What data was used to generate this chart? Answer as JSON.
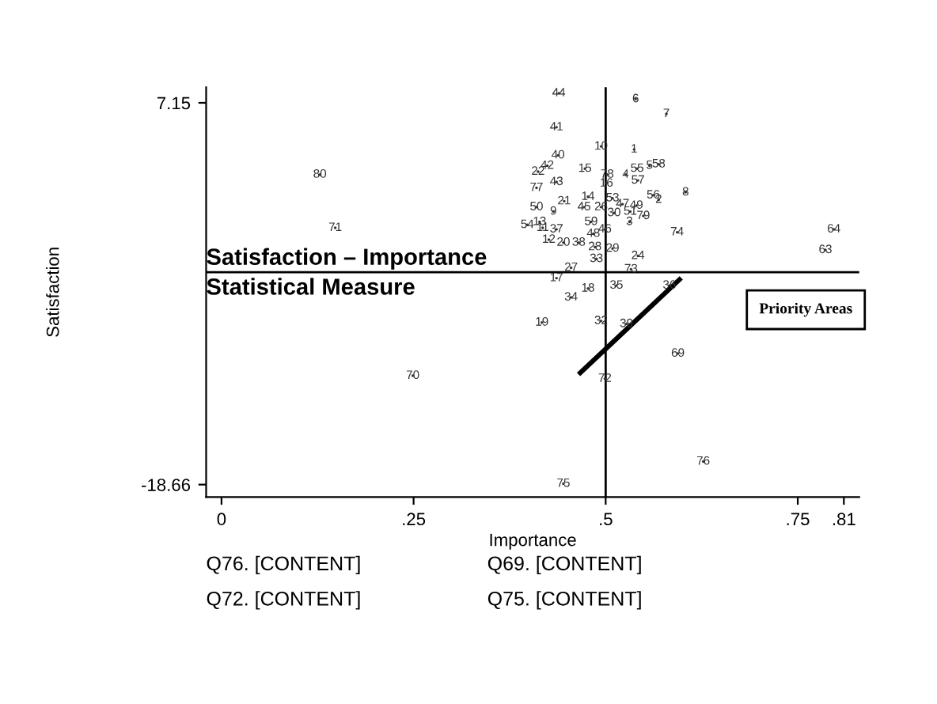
{
  "chart_data": {
    "type": "scatter",
    "title": "Satisfaction – Importance Statistical Measure",
    "xlabel": "Importance",
    "ylabel": "Satisfaction",
    "annotations": [
      "Priority Areas",
      "Q76. [CONTENT]",
      "Q69. [CONTENT]",
      "Q72. [CONTENT]",
      "Q75. [CONTENT]",
      {
        "text": "44",
        "x": 0.439,
        "y": 7.8
      },
      {
        "text": "41",
        "x": 0.436,
        "y": 5.5
      },
      {
        "text": "40",
        "x": 0.438,
        "y": 3.6
      },
      {
        "text": "10",
        "x": 0.494,
        "y": 4.2
      },
      {
        "text": "42",
        "x": 0.424,
        "y": 2.9
      },
      {
        "text": "22",
        "x": 0.412,
        "y": 2.5
      },
      {
        "text": "80",
        "x": 0.128,
        "y": 2.3
      },
      {
        "text": "15",
        "x": 0.473,
        "y": 2.7
      },
      {
        "text": "78",
        "x": 0.502,
        "y": 2.3
      },
      {
        "text": "16",
        "x": 0.501,
        "y": 1.7
      },
      {
        "text": "77",
        "x": 0.41,
        "y": 1.4
      },
      {
        "text": "43",
        "x": 0.436,
        "y": 1.8
      },
      {
        "text": "14",
        "x": 0.477,
        "y": 0.8
      },
      {
        "text": "53",
        "x": 0.509,
        "y": 0.7
      },
      {
        "text": "50",
        "x": 0.41,
        "y": 0.1
      },
      {
        "text": "9",
        "x": 0.432,
        "y": -0.2
      },
      {
        "text": "21",
        "x": 0.446,
        "y": 0.5
      },
      {
        "text": "45",
        "x": 0.472,
        "y": 0.1
      },
      {
        "text": "26",
        "x": 0.494,
        "y": 0.1
      },
      {
        "text": "28",
        "x": 0.486,
        "y": -2.6
      },
      {
        "text": "30",
        "x": 0.511,
        "y": -0.3
      },
      {
        "text": "47",
        "x": 0.522,
        "y": 0.3
      },
      {
        "text": "49",
        "x": 0.54,
        "y": 0.2
      },
      {
        "text": "51",
        "x": 0.532,
        "y": -0.2
      },
      {
        "text": "79",
        "x": 0.549,
        "y": -0.5
      },
      {
        "text": "3",
        "x": 0.531,
        "y": -0.9
      },
      {
        "text": "5",
        "x": 0.557,
        "y": 2.9
      },
      {
        "text": "58",
        "x": 0.569,
        "y": 3.0
      },
      {
        "text": "55",
        "x": 0.541,
        "y": 2.7
      },
      {
        "text": "57",
        "x": 0.542,
        "y": 1.9
      },
      {
        "text": "4",
        "x": 0.526,
        "y": 2.3
      },
      {
        "text": "1",
        "x": 0.537,
        "y": 4.0
      },
      {
        "text": "6",
        "x": 0.539,
        "y": 7.4
      },
      {
        "text": "7",
        "x": 0.579,
        "y": 6.4
      },
      {
        "text": "8",
        "x": 0.604,
        "y": 1.1
      },
      {
        "text": "56",
        "x": 0.562,
        "y": 0.9
      },
      {
        "text": "2",
        "x": 0.569,
        "y": 0.6
      },
      {
        "text": "74",
        "x": 0.593,
        "y": -1.6
      },
      {
        "text": "64",
        "x": 0.797,
        "y": -1.4
      },
      {
        "text": "63",
        "x": 0.786,
        "y": -2.8
      },
      {
        "text": "24",
        "x": 0.542,
        "y": -3.2
      },
      {
        "text": "73",
        "x": 0.533,
        "y": -4.1
      },
      {
        "text": "29",
        "x": 0.509,
        "y": -2.7
      },
      {
        "text": "33",
        "x": 0.488,
        "y": -3.4
      },
      {
        "text": "38",
        "x": 0.465,
        "y": -2.3
      },
      {
        "text": "20",
        "x": 0.445,
        "y": -2.3
      },
      {
        "text": "12",
        "x": 0.426,
        "y": -2.1
      },
      {
        "text": "37",
        "x": 0.436,
        "y": -1.4
      },
      {
        "text": "11",
        "x": 0.418,
        "y": -1.3
      },
      {
        "text": "54",
        "x": 0.398,
        "y": -1.1
      },
      {
        "text": "13",
        "x": 0.414,
        "y": -0.9
      },
      {
        "text": "59",
        "x": 0.481,
        "y": -0.9
      },
      {
        "text": "48",
        "x": 0.484,
        "y": -1.7
      },
      {
        "text": "46",
        "x": 0.499,
        "y": -1.4
      },
      {
        "text": "27",
        "x": 0.455,
        "y": -4.0
      },
      {
        "text": "17",
        "x": 0.436,
        "y": -4.7
      },
      {
        "text": "35",
        "x": 0.514,
        "y": -5.2
      },
      {
        "text": "18",
        "x": 0.477,
        "y": -5.4
      },
      {
        "text": "34",
        "x": 0.455,
        "y": -6.0
      },
      {
        "text": "36",
        "x": 0.583,
        "y": -5.2
      },
      {
        "text": "19",
        "x": 0.417,
        "y": -7.7
      },
      {
        "text": "32",
        "x": 0.494,
        "y": -7.6
      },
      {
        "text": "39",
        "x": 0.527,
        "y": -7.8
      },
      {
        "text": "69",
        "x": 0.594,
        "y": -9.8
      },
      {
        "text": "72",
        "x": 0.499,
        "y": -11.5
      },
      {
        "text": "70",
        "x": 0.249,
        "y": -11.3
      },
      {
        "text": "71",
        "x": 0.148,
        "y": -1.3
      },
      {
        "text": "76",
        "x": 0.627,
        "y": -17.1
      },
      {
        "text": "75",
        "x": 0.445,
        "y": -18.6
      }
    ],
    "xlim": [
      -0.02,
      0.83
    ],
    "ylim": [
      -19.5,
      8.2
    ],
    "xticks": [
      0,
      {
        "value": 0.25,
        "label": ".25"
      },
      {
        "value": 0.5,
        "label": ".5"
      },
      {
        "value": 0.75,
        "label": ".75"
      },
      {
        "value": 0.81,
        "label": ".81"
      }
    ],
    "yticks": [
      -18.66,
      7.15
    ],
    "grid": false,
    "legend": false,
    "ref_lines": [
      {
        "axis": "y",
        "value": -4.3,
        "color": "#000000"
      },
      {
        "axis": "x",
        "value": 0.5,
        "color": "#000000"
      }
    ],
    "marker": "circle",
    "series": [
      {
        "type": "scatter",
        "color": "#333333",
        "x": [
          0.439,
          0.436,
          0.438,
          0.494,
          0.424,
          0.412,
          0.128,
          0.473,
          0.502,
          0.501,
          0.41,
          0.436,
          0.477,
          0.509,
          0.41,
          0.432,
          0.446,
          0.472,
          0.494,
          0.486,
          0.511,
          0.522,
          0.54,
          0.532,
          0.549,
          0.531,
          0.557,
          0.569,
          0.541,
          0.542,
          0.526,
          0.537,
          0.539,
          0.579,
          0.604,
          0.562,
          0.569,
          0.593,
          0.797,
          0.786,
          0.542,
          0.533,
          0.509,
          0.488,
          0.465,
          0.445,
          0.426,
          0.436,
          0.418,
          0.398,
          0.414,
          0.481,
          0.484,
          0.499,
          0.455,
          0.436,
          0.514,
          0.477,
          0.455,
          0.583,
          0.417,
          0.494,
          0.527,
          0.594,
          0.499,
          0.249,
          0.148,
          0.627,
          0.445
        ],
        "values": [
          7.8,
          5.5,
          3.6,
          4.2,
          2.9,
          2.5,
          2.3,
          2.7,
          2.3,
          1.7,
          1.4,
          1.8,
          0.8,
          0.7,
          0.1,
          -0.2,
          0.5,
          0.1,
          0.1,
          -2.6,
          -0.3,
          0.3,
          0.2,
          -0.2,
          -0.5,
          -0.9,
          2.9,
          3.0,
          2.7,
          1.9,
          2.3,
          4.0,
          7.4,
          6.4,
          1.1,
          0.9,
          0.6,
          -1.6,
          -1.4,
          -2.8,
          -3.2,
          -4.1,
          -2.7,
          -3.4,
          -2.3,
          -2.3,
          -2.1,
          -1.4,
          -1.3,
          -1.1,
          -0.9,
          -0.9,
          -1.7,
          -1.4,
          -4.0,
          -4.7,
          -5.2,
          -5.4,
          -6.0,
          -5.2,
          -7.7,
          -7.6,
          -7.8,
          -9.8,
          -11.5,
          -11.3,
          -1.3,
          -17.1,
          -18.6
        ]
      },
      {
        "type": "line",
        "color": "#000000",
        "marker": "none",
        "x": [
          0.467,
          0.596
        ],
        "values": [
          -11.1,
          -4.8
        ]
      }
    ]
  }
}
